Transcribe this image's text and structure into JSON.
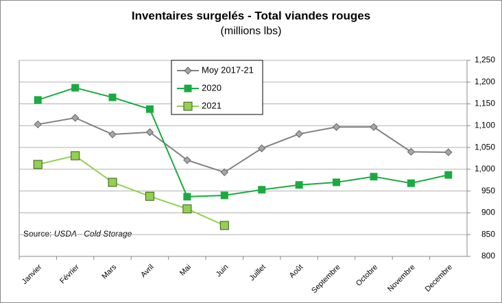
{
  "chart_data": {
    "type": "line",
    "title": "Inventaires surgelés - Total viandes rouges",
    "subtitle": "(millions lbs)",
    "source_label": "Source:",
    "source": "USDA - Cold Storage",
    "categories": [
      "Janvier",
      "Février",
      "Mars",
      "Avril",
      "Mai",
      "Juin",
      "Juillet",
      "Août",
      "Septembre",
      "Octobre",
      "Novembre",
      "Decembre"
    ],
    "series": [
      {
        "name": "Moy 2017-21",
        "color": "#808080",
        "marker": "diamond",
        "values": [
          1103,
          1118,
          1080,
          1085,
          1021,
          993,
          1048,
          1081,
          1097,
          1097,
          1040,
          1039
        ]
      },
      {
        "name": "2020",
        "color": "#1aab40",
        "marker": "square",
        "values": [
          1159,
          1187,
          1165,
          1138,
          937,
          940,
          953,
          964,
          970,
          983,
          968,
          987
        ]
      },
      {
        "name": "2021",
        "color": "#92d050",
        "marker": "square-large",
        "values": [
          1011,
          1031,
          970,
          938,
          909,
          871,
          null,
          null,
          null,
          null,
          null,
          null
        ]
      }
    ],
    "ylim": [
      800,
      1250
    ],
    "yticks": [
      800,
      850,
      900,
      950,
      {
        "value": 1000,
        "label": "1,000"
      },
      {
        "value": 1050,
        "label": "1,050"
      },
      {
        "value": 1100,
        "label": "1,100"
      },
      {
        "value": 1150,
        "label": "1,150"
      },
      {
        "value": 1200,
        "label": "1,200"
      },
      {
        "value": 1250,
        "label": "1,250"
      }
    ],
    "grid": true,
    "legend": "top-left"
  }
}
